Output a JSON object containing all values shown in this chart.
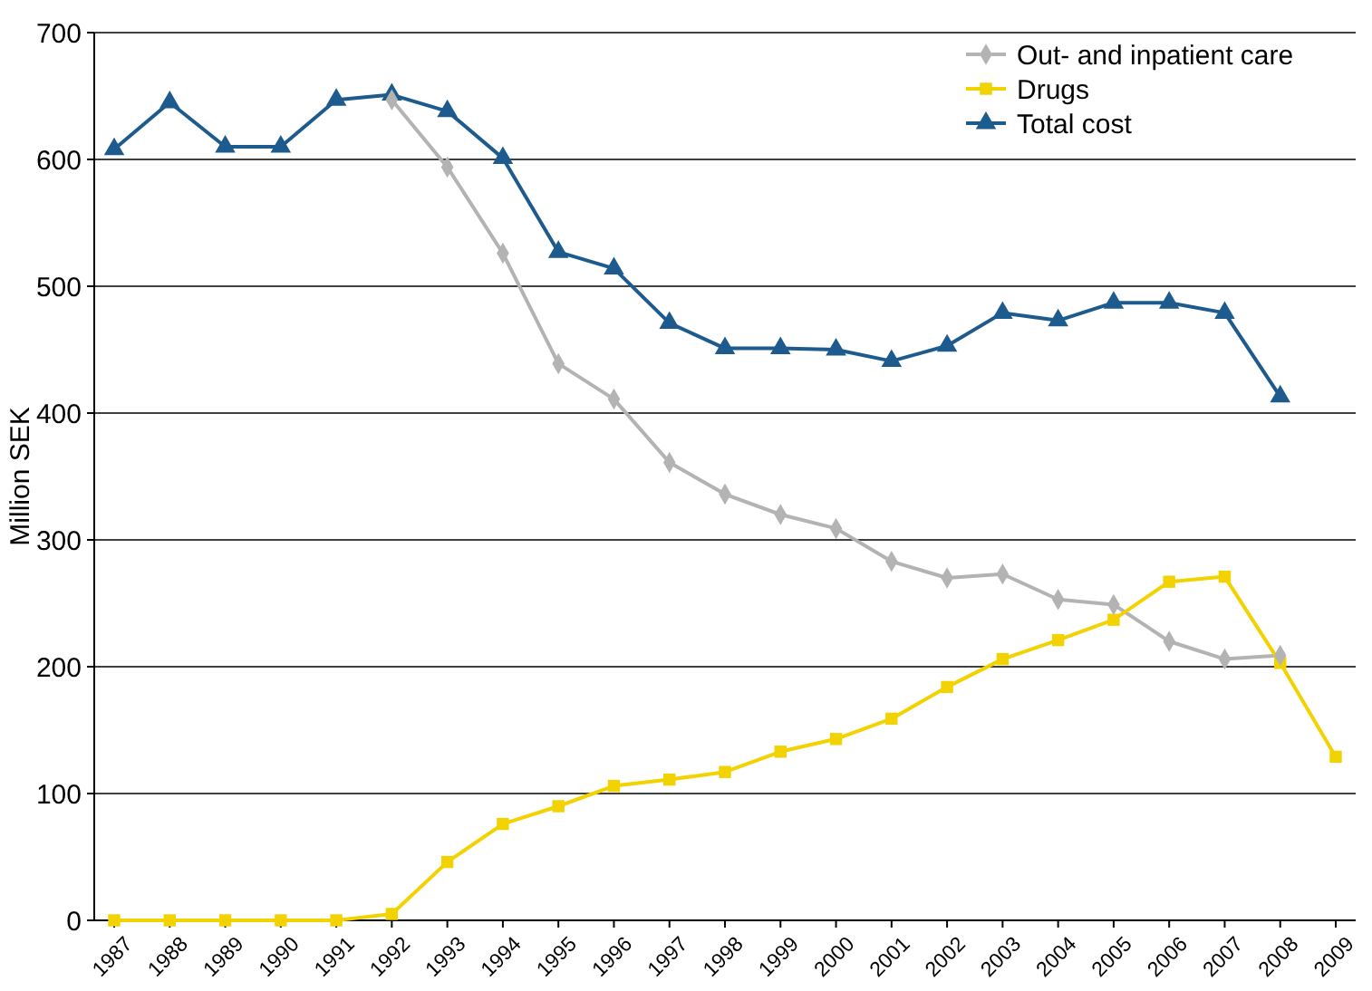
{
  "chart_data": {
    "type": "line",
    "ylabel": "Million SEK",
    "categories": [
      "1987",
      "1988",
      "1989",
      "1990",
      "1991",
      "1992",
      "1993",
      "1994",
      "1995",
      "1996",
      "1997",
      "1998",
      "1999",
      "2000",
      "2001",
      "2002",
      "2003",
      "2004",
      "2005",
      "2006",
      "2007",
      "2008",
      "2009"
    ],
    "series": [
      {
        "name": "Out- and inpatient care",
        "color": "#b3b3b3",
        "marker": "diamond",
        "values": [
          null,
          null,
          null,
          null,
          null,
          647,
          594,
          526,
          439,
          411,
          361,
          336,
          320,
          309,
          283,
          270,
          273,
          253,
          249,
          220,
          206,
          209,
          null
        ]
      },
      {
        "name": "Drugs",
        "color": "#f2d200",
        "marker": "square",
        "values": [
          0,
          0,
          0,
          0,
          0,
          5,
          46,
          76,
          90,
          106,
          111,
          117,
          133,
          143,
          159,
          184,
          206,
          221,
          237,
          267,
          271,
          203,
          129
        ]
      },
      {
        "name": "Total cost",
        "color": "#1d5b8e",
        "marker": "triangle",
        "values": [
          608,
          645,
          610,
          610,
          647,
          651,
          638,
          601,
          527,
          514,
          471,
          451,
          451,
          450,
          441,
          453,
          479,
          473,
          487,
          487,
          479,
          413,
          null
        ]
      }
    ],
    "ylim": [
      0,
      700
    ],
    "yticks": [
      0,
      100,
      200,
      300,
      400,
      500,
      600,
      700
    ],
    "grid": "y",
    "legend": "top right"
  }
}
